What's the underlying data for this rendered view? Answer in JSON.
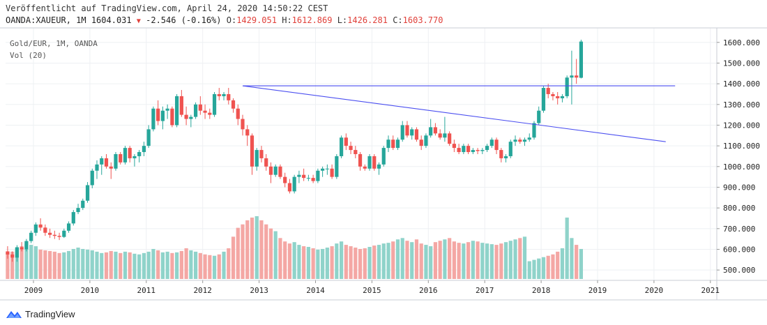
{
  "header": {
    "published": "Veröffentlicht auf TradingView.com, April 24, 2020 14:50:22 CEST",
    "symbol": "OANDA:XAUEUR, 1M",
    "last": "1604.031",
    "change": "-2.546 (-0.16%)",
    "o_label": "O:",
    "o_value": "1429.051",
    "h_label": "H:",
    "h_value": "1612.869",
    "l_label": "L:",
    "l_value": "1426.281",
    "c_label": "C:",
    "c_value": "1603.770"
  },
  "footer": {
    "brand": "TradingView"
  },
  "colors": {
    "up": "#26a69a",
    "down": "#ef5350",
    "line": "#4a4ef0",
    "vol_up": "#8fd3ca",
    "vol_down": "#f4a7a4"
  },
  "chart_data": {
    "type": "candlestick",
    "title": "Gold/EUR, 1M, OANDA",
    "volume_label": "Vol (20)",
    "ylim": [
      450,
      1670
    ],
    "y_ticks": [
      "1600.000",
      "1500.000",
      "1400.000",
      "1300.000",
      "1200.000",
      "1100.000",
      "1000.000",
      "900.000",
      "800.000",
      "700.000",
      "600.000",
      "500.000"
    ],
    "x_ticks": [
      "2009",
      "2010",
      "2011",
      "2012",
      "2013",
      "2014",
      "2015",
      "2016",
      "2017",
      "2018",
      "2019",
      "2020",
      "2021"
    ],
    "start": "2008-07",
    "ohlc": [
      [
        590,
        615,
        555,
        575
      ],
      [
        575,
        590,
        540,
        560
      ],
      [
        560,
        620,
        540,
        610
      ],
      [
        610,
        635,
        590,
        600
      ],
      [
        600,
        650,
        590,
        640
      ],
      [
        640,
        690,
        630,
        680
      ],
      [
        680,
        730,
        665,
        720
      ],
      [
        720,
        750,
        690,
        705
      ],
      [
        705,
        720,
        665,
        680
      ],
      [
        680,
        700,
        655,
        670
      ],
      [
        670,
        690,
        650,
        665
      ],
      [
        665,
        680,
        645,
        660
      ],
      [
        660,
        700,
        655,
        690
      ],
      [
        690,
        735,
        680,
        725
      ],
      [
        725,
        790,
        715,
        780
      ],
      [
        780,
        820,
        770,
        800
      ],
      [
        800,
        845,
        790,
        835
      ],
      [
        835,
        925,
        825,
        910
      ],
      [
        910,
        990,
        895,
        980
      ],
      [
        980,
        1030,
        940,
        1010
      ],
      [
        1010,
        1050,
        960,
        1040
      ],
      [
        1040,
        1060,
        990,
        1000
      ],
      [
        1000,
        1020,
        940,
        990
      ],
      [
        990,
        1070,
        980,
        1060
      ],
      [
        1060,
        1070,
        1010,
        1020
      ],
      [
        1020,
        1100,
        1010,
        1090
      ],
      [
        1090,
        1100,
        1020,
        1040
      ],
      [
        1040,
        1060,
        1000,
        1050
      ],
      [
        1050,
        1080,
        1020,
        1070
      ],
      [
        1070,
        1120,
        1050,
        1100
      ],
      [
        1100,
        1200,
        1090,
        1180
      ],
      [
        1180,
        1290,
        1170,
        1280
      ],
      [
        1280,
        1320,
        1200,
        1220
      ],
      [
        1220,
        1290,
        1180,
        1270
      ],
      [
        1270,
        1300,
        1230,
        1280
      ],
      [
        1280,
        1290,
        1190,
        1200
      ],
      [
        1200,
        1350,
        1190,
        1340
      ],
      [
        1340,
        1370,
        1240,
        1250
      ],
      [
        1250,
        1290,
        1200,
        1230
      ],
      [
        1230,
        1250,
        1190,
        1240
      ],
      [
        1240,
        1310,
        1230,
        1300
      ],
      [
        1300,
        1340,
        1250,
        1270
      ],
      [
        1270,
        1300,
        1230,
        1260
      ],
      [
        1260,
        1280,
        1230,
        1250
      ],
      [
        1250,
        1360,
        1240,
        1350
      ],
      [
        1350,
        1380,
        1320,
        1340
      ],
      [
        1340,
        1360,
        1320,
        1350
      ],
      [
        1350,
        1380,
        1300,
        1320
      ],
      [
        1320,
        1330,
        1260,
        1280
      ],
      [
        1280,
        1300,
        1200,
        1230
      ],
      [
        1230,
        1250,
        1150,
        1180
      ],
      [
        1180,
        1200,
        1100,
        1150
      ],
      [
        1150,
        1160,
        960,
        1000
      ],
      [
        1000,
        1090,
        980,
        1080
      ],
      [
        1080,
        1100,
        1020,
        1040
      ],
      [
        1040,
        1060,
        980,
        1000
      ],
      [
        1000,
        1020,
        920,
        960
      ],
      [
        960,
        1010,
        950,
        1000
      ],
      [
        1000,
        1010,
        940,
        950
      ],
      [
        950,
        970,
        900,
        920
      ],
      [
        920,
        940,
        870,
        880
      ],
      [
        880,
        960,
        870,
        950
      ],
      [
        950,
        980,
        920,
        960
      ],
      [
        960,
        990,
        930,
        945
      ],
      [
        945,
        960,
        930,
        945
      ],
      [
        945,
        960,
        920,
        930
      ],
      [
        930,
        990,
        920,
        980
      ],
      [
        980,
        1000,
        950,
        990
      ],
      [
        990,
        1010,
        960,
        990
      ],
      [
        990,
        1010,
        940,
        950
      ],
      [
        950,
        1060,
        940,
        1050
      ],
      [
        1050,
        1150,
        1040,
        1140
      ],
      [
        1140,
        1160,
        1080,
        1100
      ],
      [
        1100,
        1120,
        1060,
        1080
      ],
      [
        1080,
        1100,
        1040,
        1060
      ],
      [
        1060,
        1070,
        980,
        1000
      ],
      [
        1000,
        1010,
        980,
        990
      ],
      [
        990,
        1060,
        980,
        1050
      ],
      [
        1050,
        1060,
        980,
        990
      ],
      [
        990,
        1020,
        960,
        1010
      ],
      [
        1010,
        1100,
        1000,
        1090
      ],
      [
        1090,
        1150,
        1070,
        1130
      ],
      [
        1130,
        1150,
        1080,
        1090
      ],
      [
        1090,
        1140,
        1080,
        1130
      ],
      [
        1130,
        1220,
        1120,
        1200
      ],
      [
        1200,
        1220,
        1140,
        1150
      ],
      [
        1150,
        1190,
        1130,
        1180
      ],
      [
        1180,
        1190,
        1120,
        1130
      ],
      [
        1130,
        1150,
        1080,
        1100
      ],
      [
        1100,
        1160,
        1090,
        1150
      ],
      [
        1150,
        1230,
        1140,
        1190
      ],
      [
        1190,
        1210,
        1150,
        1160
      ],
      [
        1160,
        1180,
        1130,
        1140
      ],
      [
        1140,
        1240,
        1120,
        1160
      ],
      [
        1160,
        1170,
        1100,
        1110
      ],
      [
        1110,
        1130,
        1070,
        1090
      ],
      [
        1090,
        1110,
        1060,
        1070
      ],
      [
        1070,
        1110,
        1060,
        1100
      ],
      [
        1100,
        1110,
        1060,
        1070
      ],
      [
        1070,
        1090,
        1060,
        1080
      ],
      [
        1080,
        1090,
        1060,
        1075
      ],
      [
        1075,
        1090,
        1060,
        1080
      ],
      [
        1080,
        1110,
        1070,
        1100
      ],
      [
        1100,
        1140,
        1090,
        1130
      ],
      [
        1130,
        1140,
        1060,
        1080
      ],
      [
        1080,
        1090,
        1020,
        1040
      ],
      [
        1040,
        1060,
        1020,
        1050
      ],
      [
        1050,
        1130,
        1040,
        1120
      ],
      [
        1120,
        1150,
        1100,
        1130
      ],
      [
        1130,
        1140,
        1110,
        1120
      ],
      [
        1120,
        1140,
        1100,
        1130
      ],
      [
        1130,
        1160,
        1120,
        1140
      ],
      [
        1140,
        1220,
        1130,
        1210
      ],
      [
        1210,
        1290,
        1200,
        1270
      ],
      [
        1270,
        1390,
        1260,
        1380
      ],
      [
        1380,
        1400,
        1330,
        1350
      ],
      [
        1350,
        1360,
        1320,
        1340
      ],
      [
        1340,
        1360,
        1300,
        1330
      ],
      [
        1330,
        1350,
        1310,
        1340
      ],
      [
        1340,
        1440,
        1330,
        1430
      ],
      [
        1430,
        1560,
        1300,
        1440
      ],
      [
        1440,
        1520,
        1400,
        1430
      ],
      [
        1429,
        1613,
        1426,
        1604
      ]
    ],
    "volume": [
      38,
      40,
      45,
      48,
      52,
      50,
      48,
      43,
      42,
      41,
      40,
      38,
      39,
      41,
      44,
      46,
      44,
      43,
      42,
      40,
      38,
      39,
      41,
      40,
      38,
      40,
      39,
      37,
      36,
      38,
      40,
      44,
      42,
      39,
      40,
      38,
      39,
      41,
      45,
      42,
      40,
      38,
      36,
      35,
      34,
      36,
      40,
      45,
      62,
      75,
      80,
      86,
      90,
      92,
      86,
      80,
      74,
      70,
      60,
      55,
      52,
      54,
      50,
      48,
      47,
      45,
      43,
      44,
      46,
      48,
      52,
      55,
      50,
      48,
      46,
      44,
      45,
      47,
      49,
      50,
      52,
      53,
      55,
      58,
      60,
      56,
      54,
      58,
      52,
      50,
      48,
      54,
      56,
      58,
      60,
      55,
      53,
      52,
      54,
      56,
      55,
      53,
      52,
      51,
      50,
      52,
      54,
      56,
      58,
      60,
      62,
      26,
      28,
      30,
      32,
      34,
      36,
      40,
      45,
      90,
      60,
      50,
      44
    ]
  }
}
